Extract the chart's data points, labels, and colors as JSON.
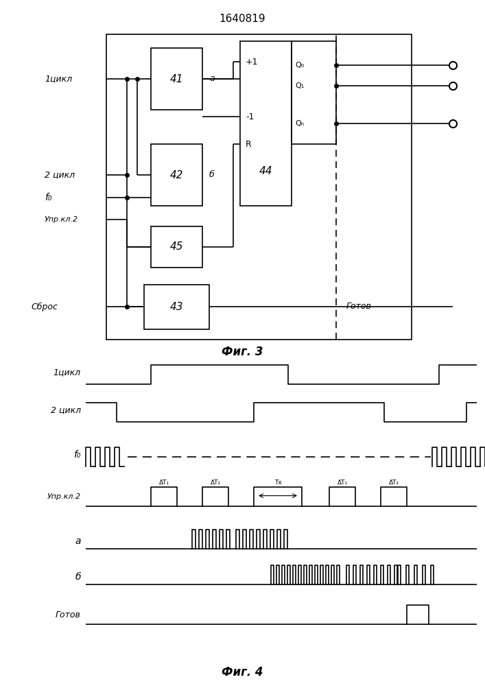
{
  "title": "1640819",
  "fig3_caption": "Фиг. 3",
  "fig4_caption": "Фиг. 4",
  "bg_color": "#ffffff",
  "line_color": "#000000"
}
